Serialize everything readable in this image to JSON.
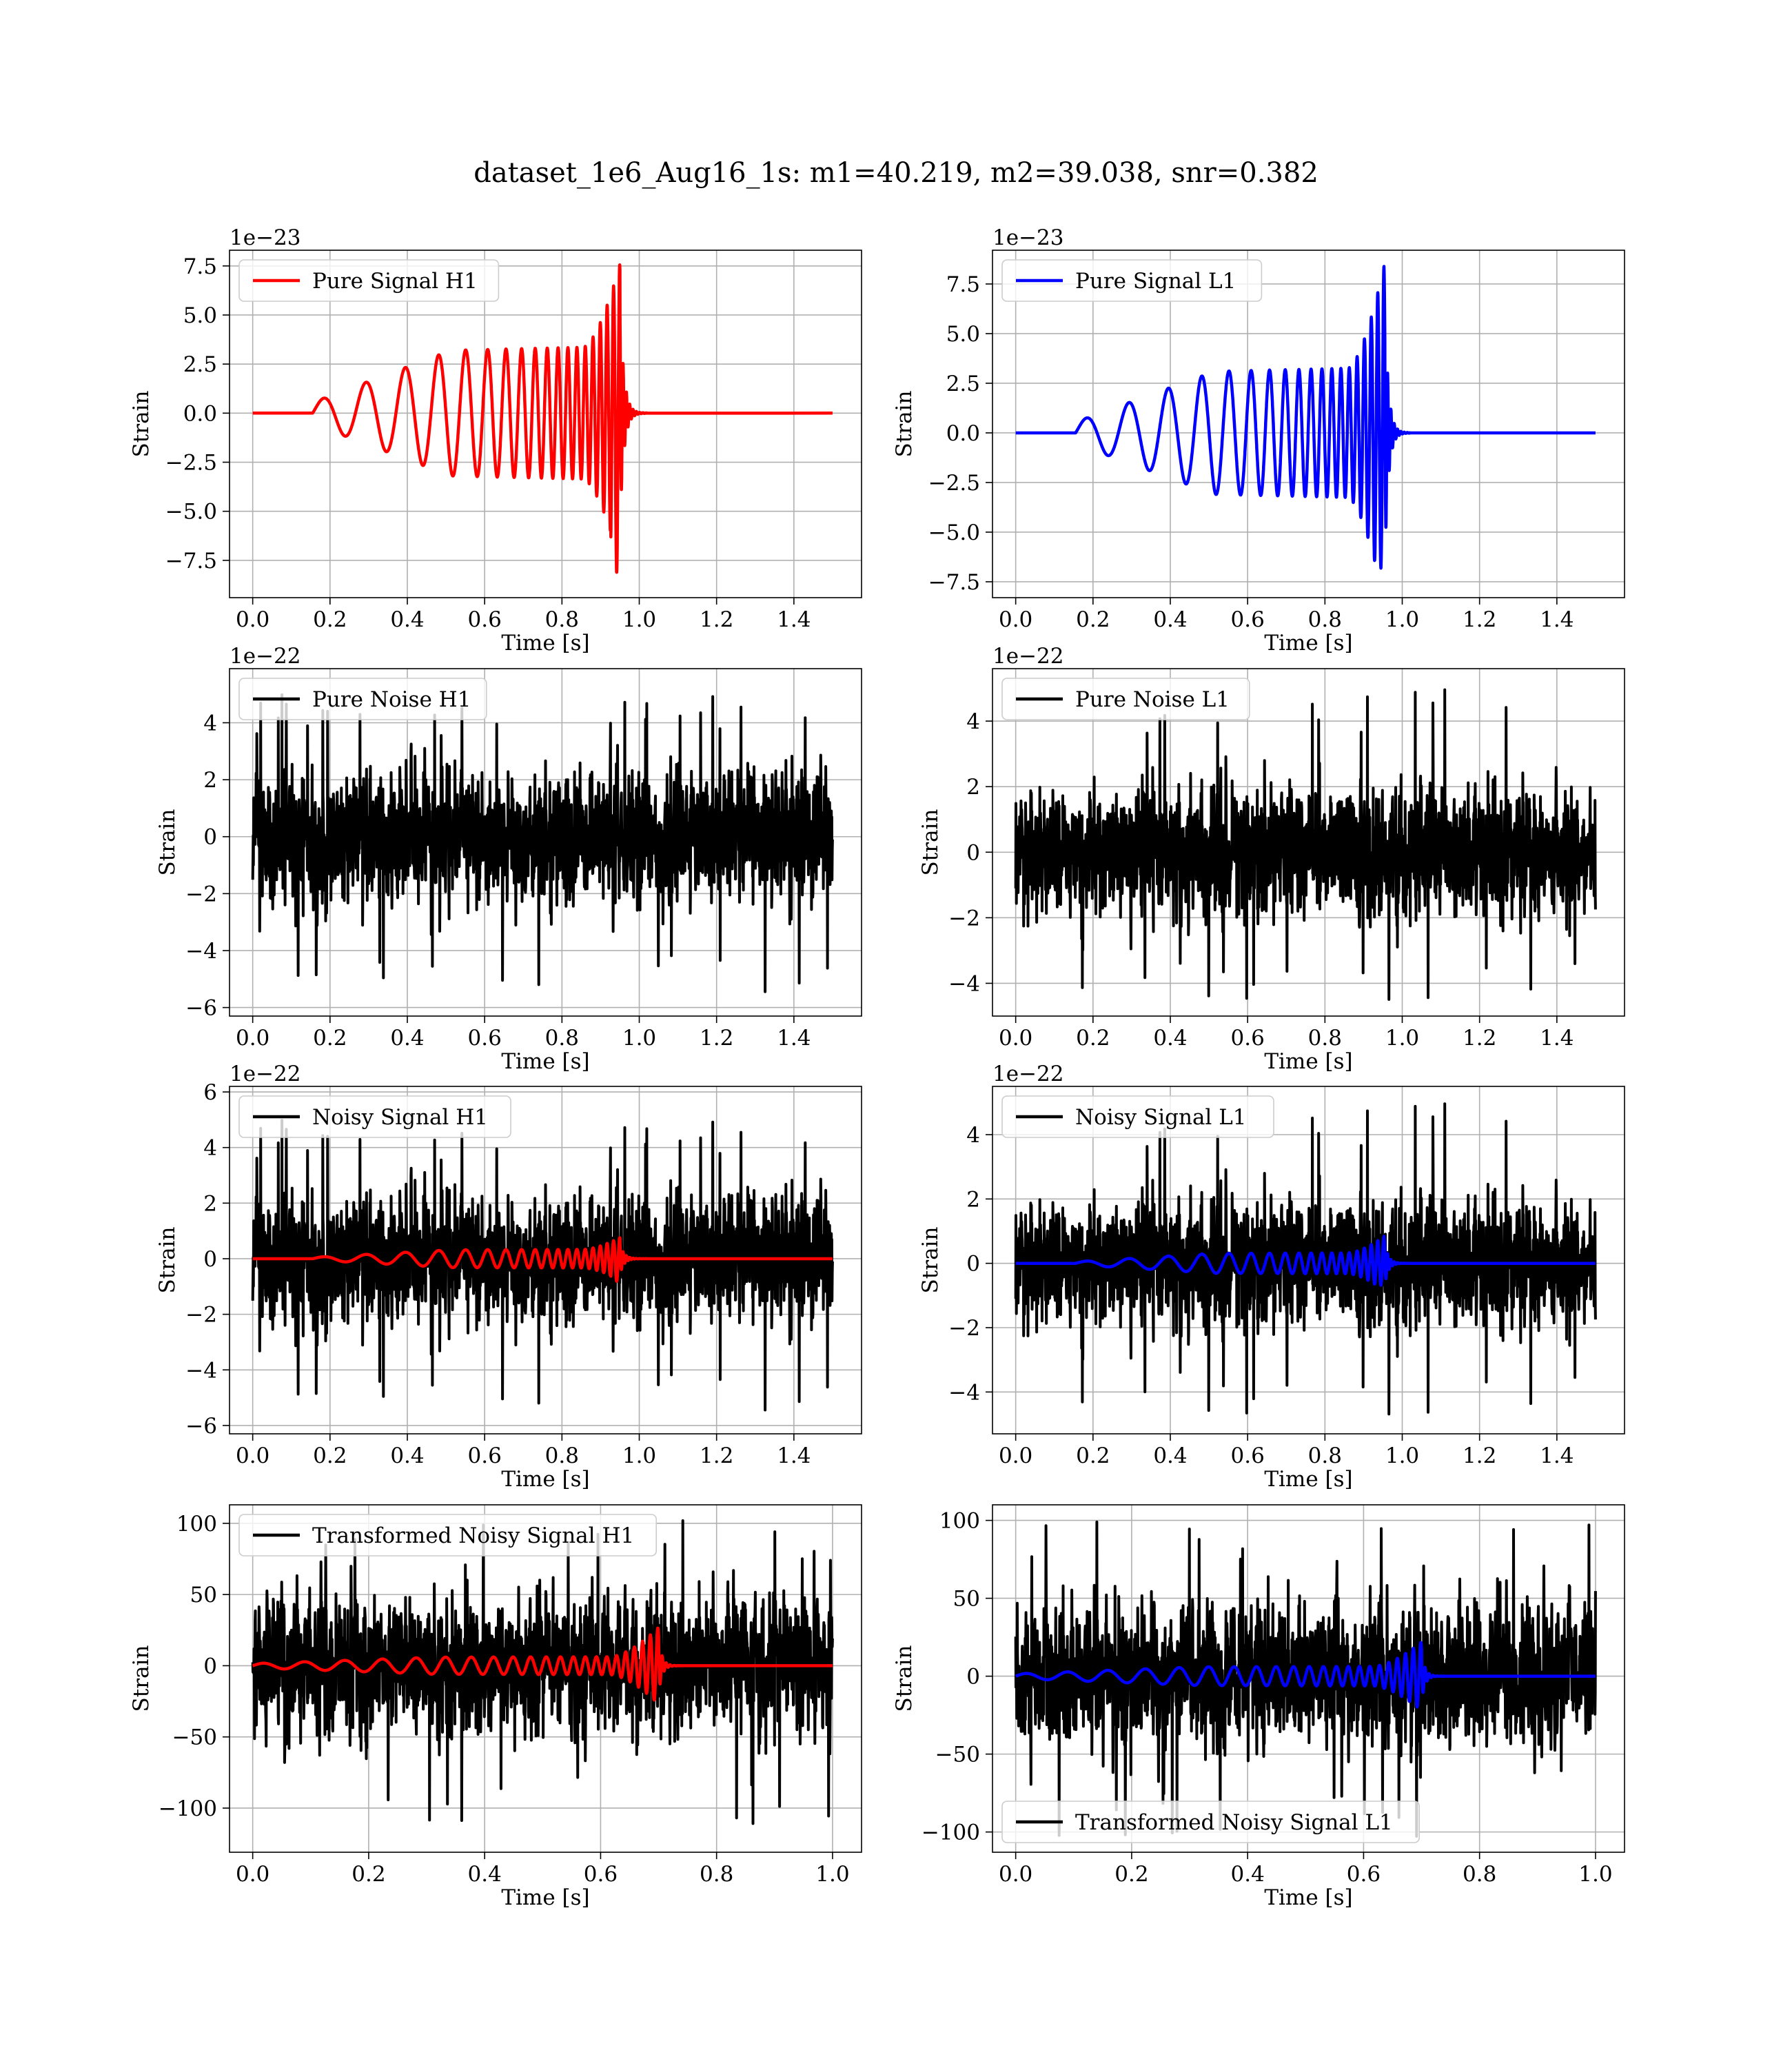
{
  "suptitle": "dataset_1e6_Aug16_1s: m1=40.219, m2=39.038, snr=0.382",
  "colors": {
    "h1_signal": "#ff0000",
    "l1_signal": "#0000ff",
    "noise": "#000000",
    "grid": "#b0b0b0"
  },
  "chart_data": [
    {
      "id": "pure-signal-h1",
      "type": "line",
      "detector": "H1",
      "xlabel": "Time [s]",
      "ylabel": "Strain",
      "offset_text": "1e−23",
      "xlim": [
        -0.06,
        1.575
      ],
      "ylim": [
        -9.4,
        8.3
      ],
      "xticks": [
        0.0,
        0.2,
        0.4,
        0.6,
        0.8,
        1.0,
        1.2,
        1.4
      ],
      "xticklabels": [
        "0.0",
        "0.2",
        "0.4",
        "0.6",
        "0.8",
        "1.0",
        "1.2",
        "1.4"
      ],
      "yticks": [
        -7.5,
        -5.0,
        -2.5,
        0.0,
        2.5,
        5.0,
        7.5
      ],
      "yticklabels": [
        "−7.5",
        "−5.0",
        "−2.5",
        "0.0",
        "2.5",
        "5.0",
        "7.5"
      ],
      "grid": true,
      "legend_position": "upper left",
      "series": [
        {
          "name": "Pure Signal H1",
          "color": "#ff0000",
          "kind": "chirp",
          "params": {
            "t0": 0.155,
            "tc": 0.95,
            "f_start": 9,
            "f_end": 65,
            "a_start": 0.55,
            "a_mid": 3.2,
            "a_peak": 7.6,
            "a_min_peak": -8.8,
            "ringdown_end": 1.02,
            "x_end": 1.5,
            "seed": 11
          }
        }
      ]
    },
    {
      "id": "pure-signal-l1",
      "type": "line",
      "detector": "L1",
      "xlabel": "Time [s]",
      "ylabel": "Strain",
      "offset_text": "1e−23",
      "xlim": [
        -0.06,
        1.575
      ],
      "ylim": [
        -8.3,
        9.2
      ],
      "xticks": [
        0.0,
        0.2,
        0.4,
        0.6,
        0.8,
        1.0,
        1.2,
        1.4
      ],
      "xticklabels": [
        "0.0",
        "0.2",
        "0.4",
        "0.6",
        "0.8",
        "1.0",
        "1.2",
        "1.4"
      ],
      "yticks": [
        -7.5,
        -5.0,
        -2.5,
        0.0,
        2.5,
        5.0,
        7.5
      ],
      "yticklabels": [
        "−7.5",
        "−5.0",
        "−2.5",
        "0.0",
        "2.5",
        "5.0",
        "7.5"
      ],
      "grid": true,
      "legend_position": "upper left",
      "series": [
        {
          "name": "Pure Signal L1",
          "color": "#0000ff",
          "kind": "chirp",
          "params": {
            "t0": 0.155,
            "tc": 0.955,
            "f_start": 9,
            "f_end": 65,
            "a_start": 0.55,
            "a_mid": 3.1,
            "a_peak": 8.6,
            "a_min_peak": -7.6,
            "ringdown_end": 1.02,
            "x_end": 1.5,
            "seed": 12
          }
        }
      ]
    },
    {
      "id": "pure-noise-h1",
      "type": "line",
      "detector": "H1",
      "xlabel": "Time [s]",
      "ylabel": "Strain",
      "offset_text": "1e−22",
      "xlim": [
        -0.06,
        1.575
      ],
      "ylim": [
        -6.3,
        5.9
      ],
      "xticks": [
        0.0,
        0.2,
        0.4,
        0.6,
        0.8,
        1.0,
        1.2,
        1.4
      ],
      "xticklabels": [
        "0.0",
        "0.2",
        "0.4",
        "0.6",
        "0.8",
        "1.0",
        "1.2",
        "1.4"
      ],
      "yticks": [
        -6,
        -4,
        -2,
        0,
        2,
        4
      ],
      "yticklabels": [
        "−6",
        "−4",
        "−2",
        "0",
        "2",
        "4"
      ],
      "grid": true,
      "legend_position": "upper left",
      "series": [
        {
          "name": "Pure Noise H1",
          "color": "#000000",
          "kind": "noise",
          "params": {
            "x_end": 1.5,
            "n": 2400,
            "sigma": 1.35,
            "max": 5.2,
            "min": -5.9,
            "seed": 101
          }
        }
      ]
    },
    {
      "id": "pure-noise-l1",
      "type": "line",
      "detector": "L1",
      "xlabel": "Time [s]",
      "ylabel": "Strain",
      "offset_text": "1e−22",
      "xlim": [
        -0.06,
        1.575
      ],
      "ylim": [
        -5.0,
        5.6
      ],
      "xticks": [
        0.0,
        0.2,
        0.4,
        0.6,
        0.8,
        1.0,
        1.2,
        1.4
      ],
      "xticklabels": [
        "0.0",
        "0.2",
        "0.4",
        "0.6",
        "0.8",
        "1.0",
        "1.2",
        "1.4"
      ],
      "yticks": [
        -4,
        -2,
        0,
        2,
        4
      ],
      "yticklabels": [
        "−4",
        "−2",
        "0",
        "2",
        "4"
      ],
      "grid": true,
      "legend_position": "upper left",
      "series": [
        {
          "name": "Pure Noise L1",
          "color": "#000000",
          "kind": "noise",
          "params": {
            "x_end": 1.5,
            "n": 2400,
            "sigma": 1.2,
            "max": 5.1,
            "min": -4.6,
            "seed": 202
          }
        }
      ]
    },
    {
      "id": "noisy-signal-h1",
      "type": "line",
      "detector": "H1",
      "xlabel": "Time [s]",
      "ylabel": "Strain",
      "offset_text": "1e−22",
      "xlim": [
        -0.06,
        1.575
      ],
      "ylim": [
        -6.3,
        6.2
      ],
      "xticks": [
        0.0,
        0.2,
        0.4,
        0.6,
        0.8,
        1.0,
        1.2,
        1.4
      ],
      "xticklabels": [
        "0.0",
        "0.2",
        "0.4",
        "0.6",
        "0.8",
        "1.0",
        "1.2",
        "1.4"
      ],
      "yticks": [
        -6,
        -4,
        -2,
        0,
        2,
        4,
        6
      ],
      "yticklabels": [
        "−6",
        "−4",
        "−2",
        "0",
        "2",
        "4",
        "6"
      ],
      "grid": true,
      "legend_position": "upper left",
      "series": [
        {
          "name": "Noisy Signal H1",
          "color": "#000000",
          "kind": "noise",
          "params": {
            "x_end": 1.5,
            "n": 2400,
            "sigma": 1.35,
            "max": 5.2,
            "min": -5.9,
            "seed": 101
          }
        },
        {
          "name": "",
          "color": "#ff0000",
          "kind": "chirp",
          "params": {
            "t0": 0.155,
            "tc": 0.95,
            "f_start": 9,
            "f_end": 65,
            "a_start": 0.05,
            "a_mid": 0.32,
            "a_peak": 0.76,
            "a_min_peak": -0.88,
            "ringdown_end": 1.02,
            "x_end": 1.5,
            "seed": 11
          }
        }
      ]
    },
    {
      "id": "noisy-signal-l1",
      "type": "line",
      "detector": "L1",
      "xlabel": "Time [s]",
      "ylabel": "Strain",
      "offset_text": "1e−22",
      "xlim": [
        -0.06,
        1.575
      ],
      "ylim": [
        -5.3,
        5.5
      ],
      "xticks": [
        0.0,
        0.2,
        0.4,
        0.6,
        0.8,
        1.0,
        1.2,
        1.4
      ],
      "xticklabels": [
        "0.0",
        "0.2",
        "0.4",
        "0.6",
        "0.8",
        "1.0",
        "1.2",
        "1.4"
      ],
      "yticks": [
        -4,
        -2,
        0,
        2,
        4
      ],
      "yticklabels": [
        "−4",
        "−2",
        "0",
        "2",
        "4"
      ],
      "grid": true,
      "legend_position": "upper left",
      "series": [
        {
          "name": "Noisy Signal L1",
          "color": "#000000",
          "kind": "noise",
          "params": {
            "x_end": 1.5,
            "n": 2400,
            "sigma": 1.2,
            "max": 5.1,
            "min": -4.8,
            "seed": 202
          }
        },
        {
          "name": "",
          "color": "#0000ff",
          "kind": "chirp",
          "params": {
            "t0": 0.155,
            "tc": 0.955,
            "f_start": 9,
            "f_end": 65,
            "a_start": 0.05,
            "a_mid": 0.31,
            "a_peak": 0.86,
            "a_min_peak": -0.76,
            "ringdown_end": 1.02,
            "x_end": 1.5,
            "seed": 12
          }
        }
      ]
    },
    {
      "id": "transformed-noisy-signal-h1",
      "type": "line",
      "detector": "H1",
      "xlabel": "Time [s]",
      "ylabel": "Strain",
      "offset_text": "",
      "xlim": [
        -0.04,
        1.05
      ],
      "ylim": [
        -131,
        113
      ],
      "xticks": [
        0.0,
        0.2,
        0.4,
        0.6,
        0.8,
        1.0
      ],
      "xticklabels": [
        "0.0",
        "0.2",
        "0.4",
        "0.6",
        "0.8",
        "1.0"
      ],
      "yticks": [
        -100,
        -50,
        0,
        50,
        100
      ],
      "yticklabels": [
        "−100",
        "−50",
        "0",
        "50",
        "100"
      ],
      "grid": true,
      "legend_position": "upper left",
      "series": [
        {
          "name": "Transformed Noisy Signal H1",
          "color": "#000000",
          "kind": "noise",
          "params": {
            "x_end": 1.0,
            "n": 2200,
            "sigma": 30,
            "max": 103,
            "min": -119,
            "seed": 303
          }
        },
        {
          "name": "",
          "color": "#ff0000",
          "kind": "chirp",
          "params": {
            "t0": 0.0,
            "tc": 0.7,
            "f_start": 14,
            "f_end": 80,
            "a_start": 1.5,
            "a_mid": 6,
            "a_peak": 27,
            "a_min_peak": -27,
            "ringdown_end": 0.74,
            "x_end": 1.0,
            "seed": 13
          }
        }
      ]
    },
    {
      "id": "transformed-noisy-signal-l1",
      "type": "line",
      "detector": "L1",
      "xlabel": "Time [s]",
      "ylabel": "Strain",
      "offset_text": "",
      "xlim": [
        -0.04,
        1.05
      ],
      "ylim": [
        -113,
        110
      ],
      "xticks": [
        0.0,
        0.2,
        0.4,
        0.6,
        0.8,
        1.0
      ],
      "xticklabels": [
        "0.0",
        "0.2",
        "0.4",
        "0.6",
        "0.8",
        "1.0"
      ],
      "yticks": [
        -100,
        -50,
        0,
        50,
        100
      ],
      "yticklabels": [
        "−100",
        "−50",
        "0",
        "50",
        "100"
      ],
      "grid": true,
      "legend_position": "lower left",
      "series": [
        {
          "name": "Transformed Noisy Signal L1",
          "color": "#000000",
          "kind": "noise",
          "params": {
            "x_end": 1.0,
            "n": 2200,
            "sigma": 28,
            "max": 101,
            "min": -105,
            "seed": 404
          }
        },
        {
          "name": "",
          "color": "#0000ff",
          "kind": "chirp",
          "params": {
            "t0": 0.0,
            "tc": 0.7,
            "f_start": 14,
            "f_end": 80,
            "a_start": 1.5,
            "a_mid": 6,
            "a_peak": 22,
            "a_min_peak": -22,
            "ringdown_end": 0.74,
            "x_end": 1.0,
            "seed": 14
          }
        }
      ]
    }
  ]
}
